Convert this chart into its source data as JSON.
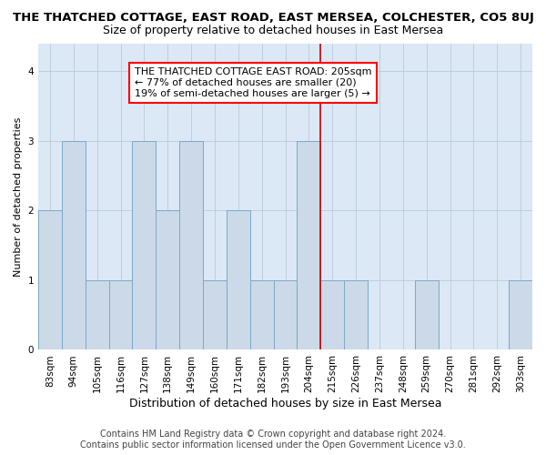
{
  "title": "THE THATCHED COTTAGE, EAST ROAD, EAST MERSEA, COLCHESTER, CO5 8UJ",
  "subtitle": "Size of property relative to detached houses in East Mersea",
  "xlabel": "Distribution of detached houses by size in East Mersea",
  "ylabel": "Number of detached properties",
  "bar_labels": [
    "83sqm",
    "94sqm",
    "105sqm",
    "116sqm",
    "127sqm",
    "138sqm",
    "149sqm",
    "160sqm",
    "171sqm",
    "182sqm",
    "193sqm",
    "204sqm",
    "215sqm",
    "226sqm",
    "237sqm",
    "248sqm",
    "259sqm",
    "270sqm",
    "281sqm",
    "292sqm",
    "303sqm"
  ],
  "bar_values": [
    2,
    3,
    1,
    1,
    3,
    2,
    3,
    1,
    2,
    1,
    1,
    3,
    1,
    1,
    0,
    0,
    1,
    0,
    0,
    0,
    1
  ],
  "bar_color": "#ccd9e8",
  "bar_edge_color": "#7aaac8",
  "vline_x_index": 11,
  "vline_color": "#cc0000",
  "annotation_line0": "THE THATCHED COTTAGE EAST ROAD: 205sqm",
  "annotation_line1": "← 77% of detached houses are smaller (20)",
  "annotation_line2": "19% of semi-detached houses are larger (5) →",
  "ylim": [
    0,
    4.4
  ],
  "yticks": [
    0,
    1,
    2,
    3,
    4
  ],
  "footer_line1": "Contains HM Land Registry data © Crown copyright and database right 2024.",
  "footer_line2": "Contains public sector information licensed under the Open Government Licence v3.0.",
  "bg_color": "#dce8f5",
  "grid_color": "#b8ccd8",
  "title_fontsize": 9.5,
  "subtitle_fontsize": 9,
  "xlabel_fontsize": 9,
  "ylabel_fontsize": 8,
  "tick_fontsize": 7.5,
  "footer_fontsize": 7,
  "annotation_fontsize": 8
}
